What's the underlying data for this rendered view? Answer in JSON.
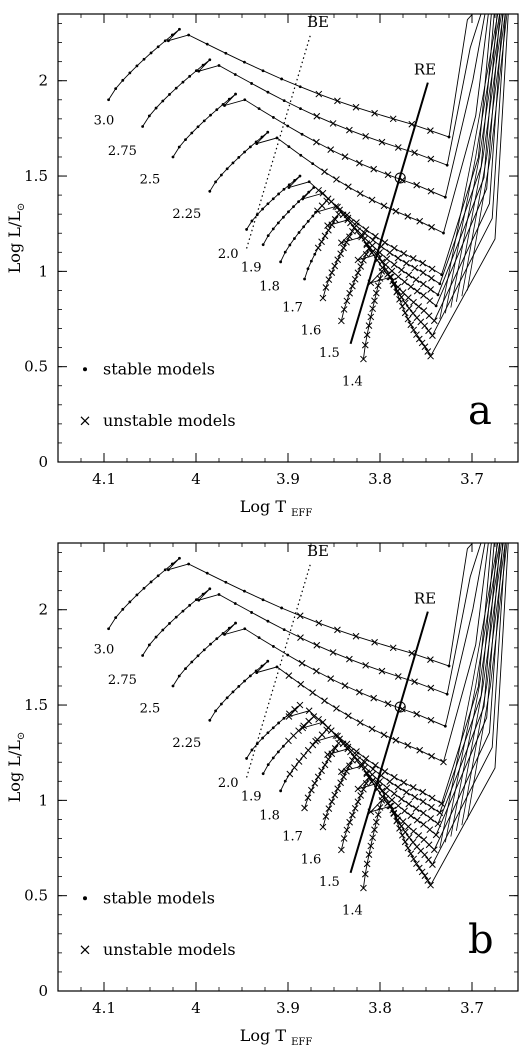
{
  "chart_data": [
    {
      "type": "line",
      "panel_letter": "a",
      "xlabel": "Log T",
      "xlabel_sub": "EFF",
      "ylabel": "Log L/L",
      "ylabel_sub": "⊙",
      "xlim": [
        4.15,
        3.65
      ],
      "ylim": [
        0,
        2.35
      ],
      "xticks": [
        "4.1",
        "4",
        "3.9",
        "3.8",
        "3.7"
      ],
      "xtick_values": [
        4.1,
        4.0,
        3.9,
        3.8,
        3.7
      ],
      "yticks": [
        "0",
        "0.5",
        "1",
        "1.5",
        "2"
      ],
      "ytick_values": [
        0,
        0.5,
        1,
        1.5,
        2
      ],
      "legend": [
        {
          "symbol": "•",
          "label": "stable models"
        },
        {
          "symbol": "×",
          "label": "unstable models"
        }
      ],
      "edges": {
        "blue_edge": {
          "label": "BE",
          "points": [
            [
              3.945,
              1.12
            ],
            [
              3.875,
              2.25
            ]
          ]
        },
        "red_edge": {
          "label": "RE",
          "points": [
            [
              3.832,
              0.62
            ],
            [
              3.748,
              1.99
            ]
          ]
        }
      },
      "tracks": [
        {
          "mass": "3.0",
          "t0": 4.095,
          "l0": 1.9,
          "t1": 4.018,
          "l1": 2.27,
          "lbl": [
            4.1,
            1.77
          ]
        },
        {
          "mass": "2.75",
          "t0": 4.058,
          "l0": 1.76,
          "t1": 3.985,
          "l1": 2.11,
          "lbl": [
            4.08,
            1.61
          ]
        },
        {
          "mass": "2.5",
          "t0": 4.025,
          "l0": 1.6,
          "t1": 3.957,
          "l1": 1.93,
          "lbl": [
            4.05,
            1.46
          ]
        },
        {
          "mass": "2.25",
          "t0": 3.985,
          "l0": 1.42,
          "t1": 3.922,
          "l1": 1.73,
          "lbl": [
            4.01,
            1.28
          ]
        },
        {
          "mass": "2.0",
          "t0": 3.945,
          "l0": 1.22,
          "t1": 3.887,
          "l1": 1.5,
          "lbl": [
            3.965,
            1.07
          ]
        },
        {
          "mass": "1.9",
          "t0": 3.927,
          "l0": 1.14,
          "t1": 3.872,
          "l1": 1.44,
          "lbl": [
            3.94,
            1.0
          ]
        },
        {
          "mass": "1.8",
          "t0": 3.908,
          "l0": 1.05,
          "t1": 3.858,
          "l1": 1.37,
          "lbl": [
            3.92,
            0.9
          ]
        },
        {
          "mass": "1.7",
          "t0": 3.882,
          "l0": 0.96,
          "t1": 3.845,
          "l1": 1.3,
          "lbl": [
            3.895,
            0.79
          ]
        },
        {
          "mass": "1.6",
          "t0": 3.862,
          "l0": 0.86,
          "t1": 3.83,
          "l1": 1.21,
          "lbl": [
            3.875,
            0.67
          ]
        },
        {
          "mass": "1.5",
          "t0": 3.842,
          "l0": 0.74,
          "t1": 3.812,
          "l1": 1.12,
          "lbl": [
            3.855,
            0.55
          ]
        },
        {
          "mass": "1.4",
          "t0": 3.818,
          "l0": 0.54,
          "t1": 3.798,
          "l1": 1.0,
          "lbl": [
            3.83,
            0.4
          ]
        }
      ]
    },
    {
      "type": "line",
      "panel_letter": "b",
      "xlabel": "Log T",
      "xlabel_sub": "EFF",
      "ylabel": "Log L/L",
      "ylabel_sub": "⊙",
      "xlim": [
        4.15,
        3.65
      ],
      "ylim": [
        0,
        2.35
      ],
      "xticks": [
        "4.1",
        "4",
        "3.9",
        "3.8",
        "3.7"
      ],
      "xtick_values": [
        4.1,
        4.0,
        3.9,
        3.8,
        3.7
      ],
      "yticks": [
        "0",
        "0.5",
        "1",
        "1.5",
        "2"
      ],
      "ytick_values": [
        0,
        0.5,
        1,
        1.5,
        2
      ],
      "legend": [
        {
          "symbol": "•",
          "label": "stable models"
        },
        {
          "symbol": "×",
          "label": "unstable models"
        }
      ],
      "edges": {
        "blue_edge": {
          "label": "BE",
          "points": [
            [
              3.945,
              1.12
            ],
            [
              3.875,
              2.25
            ]
          ]
        },
        "red_edge": {
          "label": "RE",
          "points": [
            [
              3.832,
              0.62
            ],
            [
              3.748,
              1.99
            ]
          ]
        }
      },
      "tracks": [
        {
          "mass": "3.0",
          "t0": 4.095,
          "l0": 1.9,
          "t1": 4.018,
          "l1": 2.27,
          "lbl": [
            4.1,
            1.77
          ]
        },
        {
          "mass": "2.75",
          "t0": 4.058,
          "l0": 1.76,
          "t1": 3.985,
          "l1": 2.11,
          "lbl": [
            4.08,
            1.61
          ]
        },
        {
          "mass": "2.5",
          "t0": 4.025,
          "l0": 1.6,
          "t1": 3.957,
          "l1": 1.93,
          "lbl": [
            4.05,
            1.46
          ]
        },
        {
          "mass": "2.25",
          "t0": 3.985,
          "l0": 1.42,
          "t1": 3.922,
          "l1": 1.73,
          "lbl": [
            4.01,
            1.28
          ]
        },
        {
          "mass": "2.0",
          "t0": 3.945,
          "l0": 1.22,
          "t1": 3.887,
          "l1": 1.5,
          "lbl": [
            3.965,
            1.07
          ]
        },
        {
          "mass": "1.9",
          "t0": 3.927,
          "l0": 1.14,
          "t1": 3.872,
          "l1": 1.44,
          "lbl": [
            3.94,
            1.0
          ]
        },
        {
          "mass": "1.8",
          "t0": 3.908,
          "l0": 1.05,
          "t1": 3.858,
          "l1": 1.37,
          "lbl": [
            3.92,
            0.9
          ]
        },
        {
          "mass": "1.7",
          "t0": 3.882,
          "l0": 0.96,
          "t1": 3.845,
          "l1": 1.3,
          "lbl": [
            3.895,
            0.79
          ]
        },
        {
          "mass": "1.6",
          "t0": 3.862,
          "l0": 0.86,
          "t1": 3.83,
          "l1": 1.21,
          "lbl": [
            3.875,
            0.67
          ]
        },
        {
          "mass": "1.5",
          "t0": 3.842,
          "l0": 0.74,
          "t1": 3.812,
          "l1": 1.12,
          "lbl": [
            3.855,
            0.55
          ]
        },
        {
          "mass": "1.4",
          "t0": 3.818,
          "l0": 0.54,
          "t1": 3.798,
          "l1": 1.0,
          "lbl": [
            3.83,
            0.4
          ]
        }
      ]
    }
  ]
}
